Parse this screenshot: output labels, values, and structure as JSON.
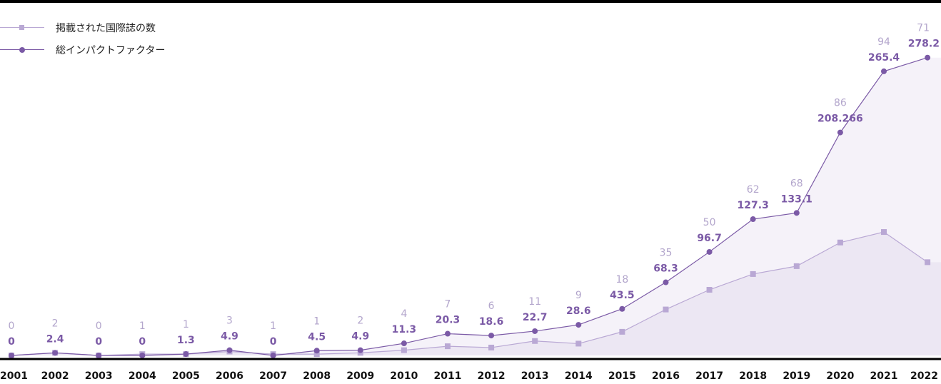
{
  "colors": {
    "count_series": "#b9a8d4",
    "if_series": "#7b5aa6",
    "count_label": "#b3a6cc",
    "if_label": "#7b5aa6",
    "area_if": "#f5f2f9",
    "area_count": "#ece7f3",
    "axis": "#000000"
  },
  "chart_data": {
    "type": "line",
    "x": [
      "2001",
      "2002",
      "2003",
      "2004",
      "2005",
      "2006",
      "2007",
      "2008",
      "2009",
      "2010",
      "2011",
      "2012",
      "2013",
      "2014",
      "2015",
      "2016",
      "2017",
      "2018",
      "2019",
      "2020",
      "2021",
      "2022"
    ],
    "series": [
      {
        "name": "掲載された国際誌の数",
        "marker": "square",
        "values": [
          0,
          2,
          0,
          1,
          1,
          3,
          1,
          1,
          2,
          4,
          7,
          6,
          11,
          9,
          18,
          35,
          50,
          62,
          68,
          86,
          94,
          71
        ],
        "labels": [
          "0",
          "2",
          "0",
          "1",
          "1",
          "3",
          "1",
          "1",
          "2",
          "4",
          "7",
          "6",
          "11",
          "9",
          "18",
          "35",
          "50",
          "62",
          "68",
          "86",
          "94",
          "71"
        ]
      },
      {
        "name": "総インパクトファクター",
        "marker": "circle",
        "values": [
          0,
          2.4,
          0,
          0,
          1.3,
          4.9,
          0,
          4.5,
          4.9,
          11.3,
          20.3,
          18.6,
          22.7,
          28.6,
          43.5,
          68.3,
          96.7,
          127.3,
          133.1,
          208.266,
          265.4,
          278.2
        ],
        "labels": [
          "0",
          "2.4",
          "0",
          "0",
          "1.3",
          "4.9",
          "0",
          "4.5",
          "4.9",
          "11.3",
          "20.3",
          "18.6",
          "22.7",
          "28.6",
          "43.5",
          "68.3",
          "96.7",
          "127.3",
          "133.1",
          "208.266",
          "265.4",
          "278.2"
        ]
      }
    ],
    "legend_position": "top-left",
    "grid": false
  }
}
